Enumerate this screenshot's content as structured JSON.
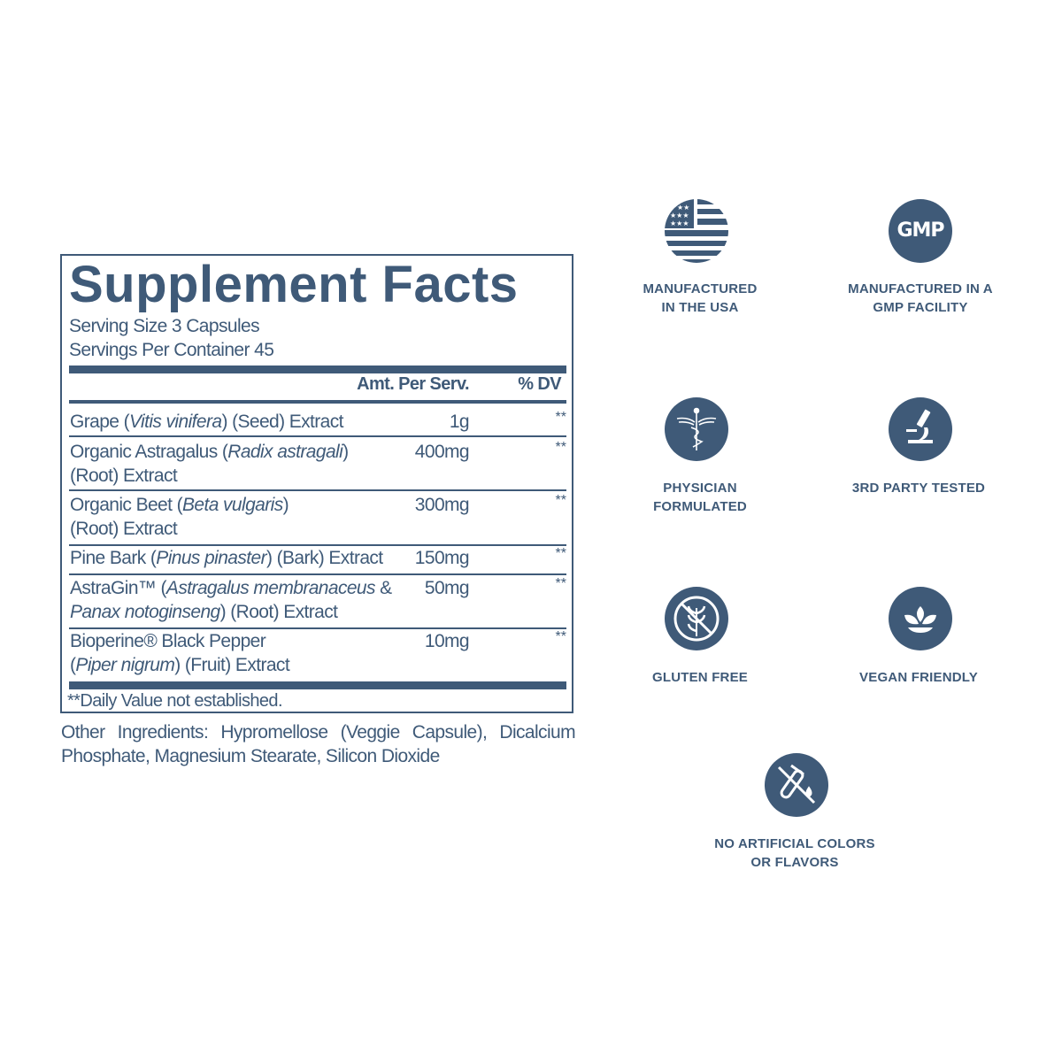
{
  "panel": {
    "title": "Supplement Facts",
    "serving_size": "Serving Size 3 Capsules",
    "servings_per_container": "Servings Per Container 45",
    "col_amount": "Amt. Per Serv.",
    "col_dv": "% DV",
    "rows": [
      {
        "lines": [
          [
            {
              "t": "Grape ("
            },
            {
              "t": "Vitis vinifera",
              "i": true
            },
            {
              "t": ") (Seed) Extract"
            }
          ]
        ],
        "amount": "1g",
        "dv": "**"
      },
      {
        "lines": [
          [
            {
              "t": "Organic Astragalus ("
            },
            {
              "t": "Radix astragali",
              "i": true
            },
            {
              "t": ")"
            }
          ],
          [
            {
              "t": "(Root) Extract"
            }
          ]
        ],
        "amount": "400mg",
        "dv": "**"
      },
      {
        "lines": [
          [
            {
              "t": "Organic Beet ("
            },
            {
              "t": "Beta vulgaris",
              "i": true
            },
            {
              "t": ")"
            }
          ],
          [
            {
              "t": "(Root) Extract"
            }
          ]
        ],
        "amount": "300mg",
        "dv": "**"
      },
      {
        "lines": [
          [
            {
              "t": "Pine Bark ("
            },
            {
              "t": "Pinus pinaster",
              "i": true
            },
            {
              "t": ") (Bark) Extract"
            }
          ]
        ],
        "amount": "150mg",
        "dv": "**"
      },
      {
        "lines": [
          [
            {
              "t": "AstraGin™ ("
            },
            {
              "t": "Astragalus membranaceus",
              "i": true
            },
            {
              "t": " &"
            }
          ],
          [
            {
              "t": "Panax notoginseng",
              "i": true
            },
            {
              "t": ") (Root) Extract"
            }
          ]
        ],
        "amount": "50mg",
        "dv": "**"
      },
      {
        "lines": [
          [
            {
              "t": "Bioperine® Black Pepper"
            }
          ],
          [
            {
              "t": "("
            },
            {
              "t": "Piper nigrum",
              "i": true
            },
            {
              "t": ") (Fruit) Extract"
            }
          ]
        ],
        "amount": "10mg",
        "dv": "**"
      }
    ],
    "footnote": "**Daily Value not established.",
    "other_ingredients": "Other Ingredients: Hypromellose (Veggie Capsule), Dicalcium Phosphate, Magnesium Stearate, Silicon Dioxide"
  },
  "badges": [
    {
      "icon": "us-flag-icon",
      "line1": "MANUFACTURED",
      "line2": "IN THE USA"
    },
    {
      "icon": "gmp-icon",
      "icon_text": "GMP",
      "line1": "MANUFACTURED IN A",
      "line2": "GMP FACILITY"
    },
    {
      "icon": "caduceus-icon",
      "line1": "PHYSICIAN",
      "line2": "FORMULATED"
    },
    {
      "icon": "microscope-icon",
      "line1": "3RD PARTY TESTED",
      "line2": ""
    },
    {
      "icon": "no-gluten-icon",
      "line1": "GLUTEN FREE",
      "line2": ""
    },
    {
      "icon": "leaf-icon",
      "line1": "VEGAN FRIENDLY",
      "line2": ""
    },
    {
      "icon": "no-test-tube-icon",
      "line1": "NO ARTIFICIAL COLORS",
      "line2": "OR FLAVORS"
    }
  ],
  "colors": {
    "primary": "#3f5a78",
    "background": "#ffffff"
  }
}
